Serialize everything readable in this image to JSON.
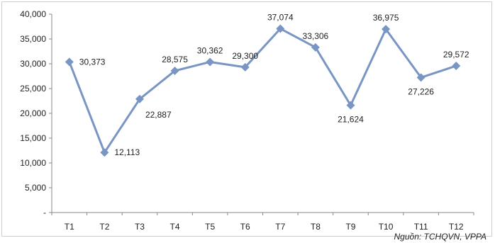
{
  "chart_data": {
    "type": "line",
    "categories": [
      "T1",
      "T2",
      "T3",
      "T4",
      "T5",
      "T6",
      "T7",
      "T8",
      "T9",
      "T10",
      "T11",
      "T12"
    ],
    "values": [
      30373,
      12113,
      22887,
      28575,
      30362,
      29300,
      37074,
      33306,
      21624,
      36975,
      27226,
      29572
    ],
    "value_labels": [
      "30,373",
      "12,113",
      "22,887",
      "28,575",
      "30,362",
      "29,300",
      "37,074",
      "33,306",
      "21,624",
      "36,975",
      "27,226",
      "29,572"
    ],
    "y_ticks": [
      "-",
      "5,000",
      "10,000",
      "15,000",
      "20,000",
      "25,000",
      "30,000",
      "35,000",
      "40,000"
    ],
    "ylim": [
      0,
      40000
    ],
    "grid": false,
    "legend": "none",
    "line_color": "#7895c4",
    "marker": "diamond"
  },
  "source_note": "Nguồn: TCHQVN, VPPA"
}
